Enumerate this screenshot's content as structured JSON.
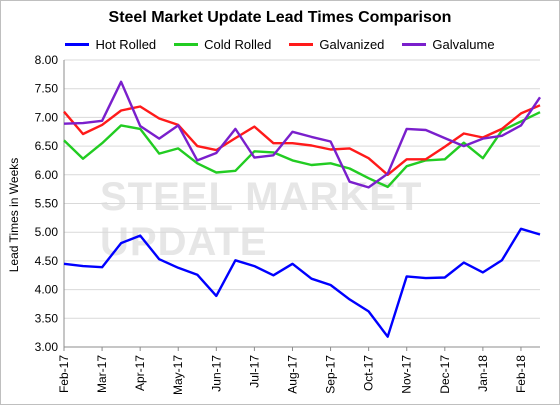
{
  "chart_data": {
    "type": "line",
    "title": "Steel Market Update Lead Times Comparison",
    "ylabel": "Lead Times in Weeks",
    "xlabel": "",
    "ylim": [
      3.0,
      8.0
    ],
    "yticks": [
      "3.00",
      "3.50",
      "4.00",
      "4.50",
      "5.00",
      "5.50",
      "6.00",
      "6.50",
      "7.00",
      "7.50",
      "8.00"
    ],
    "xtick_labels": [
      "Feb-17",
      "Mar-17",
      "Apr-17",
      "May-17",
      "Jun-17",
      "Jul-17",
      "Aug-17",
      "Sep-17",
      "Oct-17",
      "Nov-17",
      "Dec-17",
      "Jan-18",
      "Feb-18"
    ],
    "grid": true,
    "legend_position": "top",
    "watermark": "STEEL MARKET UPDATE",
    "series": [
      {
        "name": "Hot Rolled",
        "color": "#0000ff",
        "values": [
          4.45,
          4.41,
          4.39,
          4.81,
          4.94,
          4.53,
          4.38,
          4.26,
          3.89,
          4.51,
          4.41,
          4.25,
          4.45,
          4.19,
          4.08,
          3.83,
          3.62,
          3.18,
          4.23,
          4.2,
          4.21,
          4.47,
          4.3,
          4.51,
          5.06,
          4.96
        ]
      },
      {
        "name": "Cold Rolled",
        "color": "#22cc22",
        "values": [
          6.6,
          6.28,
          6.55,
          6.86,
          6.8,
          6.37,
          6.46,
          6.2,
          6.04,
          6.07,
          6.41,
          6.39,
          6.25,
          6.17,
          6.2,
          6.11,
          5.94,
          5.79,
          6.15,
          6.25,
          6.27,
          6.56,
          6.29,
          6.77,
          6.93,
          7.09
        ]
      },
      {
        "name": "Galvanized",
        "color": "#ff1a1a",
        "values": [
          7.1,
          6.71,
          6.87,
          7.12,
          7.19,
          6.98,
          6.87,
          6.5,
          6.43,
          6.64,
          6.84,
          6.55,
          6.55,
          6.51,
          6.44,
          6.46,
          6.29,
          6.0,
          6.27,
          6.27,
          6.49,
          6.72,
          6.65,
          6.8,
          7.07,
          7.21
        ]
      },
      {
        "name": "Galvalume",
        "color": "#7a1fcc",
        "values": [
          6.89,
          6.9,
          6.94,
          7.62,
          6.85,
          6.63,
          6.86,
          6.25,
          6.38,
          6.8,
          6.3,
          6.34,
          6.75,
          6.66,
          6.58,
          5.88,
          5.78,
          6.02,
          6.8,
          6.78,
          6.64,
          6.5,
          6.63,
          6.68,
          6.86,
          7.35
        ]
      }
    ]
  }
}
